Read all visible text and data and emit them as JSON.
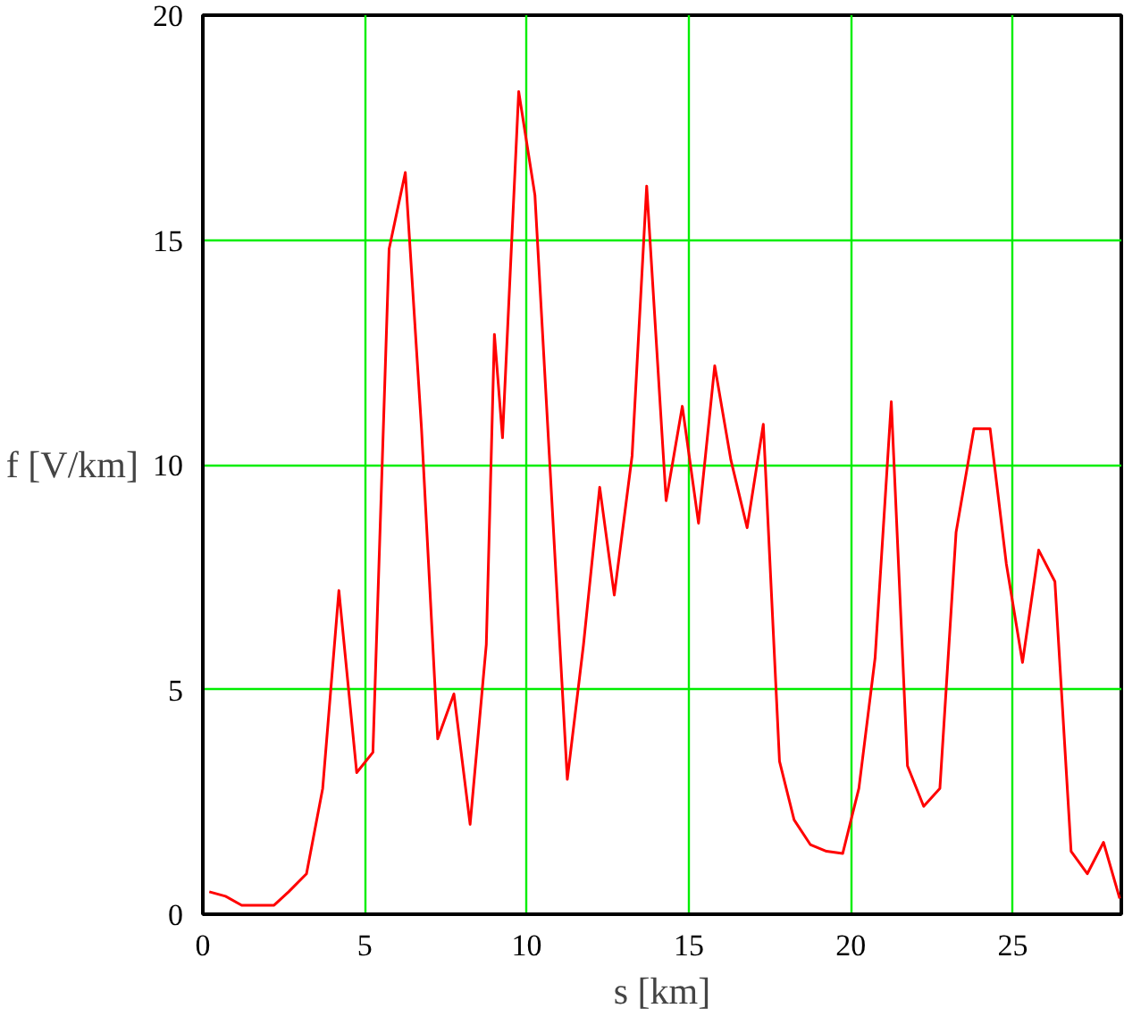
{
  "chart_data": {
    "type": "line",
    "xlabel": "s [km]",
    "ylabel": "f [V/km]",
    "x": [
      0.2,
      0.7,
      1.2,
      2.2,
      2.65,
      3.2,
      3.7,
      4.2,
      4.75,
      5.25,
      5.75,
      6.25,
      6.75,
      7.25,
      7.75,
      8.25,
      8.75,
      9.0,
      9.25,
      9.75,
      10.25,
      11.25,
      11.75,
      12.25,
      12.7,
      13.25,
      13.7,
      14.3,
      14.8,
      15.3,
      15.8,
      16.3,
      16.8,
      17.3,
      17.8,
      18.25,
      18.75,
      19.25,
      19.75,
      20.25,
      20.75,
      21.25,
      21.75,
      22.25,
      22.75,
      23.25,
      23.8,
      24.3,
      24.8,
      25.3,
      25.8,
      26.3,
      26.8,
      27.3,
      27.8,
      28.3
    ],
    "series": [
      {
        "color": "#ff0000",
        "values": [
          0.5,
          0.4,
          0.2,
          0.2,
          0.5,
          0.9,
          2.8,
          7.2,
          3.15,
          3.6,
          14.8,
          16.5,
          10.8,
          3.9,
          4.9,
          2.0,
          6.0,
          12.9,
          10.6,
          18.3,
          16.0,
          3.0,
          6.0,
          9.5,
          7.1,
          10.2,
          16.2,
          9.2,
          11.3,
          8.7,
          12.2,
          10.1,
          8.6,
          10.9,
          3.4,
          2.1,
          1.55,
          1.4,
          1.35,
          2.8,
          5.7,
          11.4,
          3.3,
          2.4,
          2.8,
          8.5,
          10.8,
          10.8,
          7.8,
          5.6,
          8.1,
          7.4,
          1.4,
          0.9,
          1.6,
          0.35
        ]
      }
    ],
    "xlim": [
      0,
      28.35
    ],
    "ylim": [
      0,
      20
    ],
    "xticks": [
      0,
      5,
      10,
      15,
      20,
      25
    ],
    "yticks": [
      0,
      5,
      10,
      15,
      20
    ],
    "grid": true,
    "line_style": "solid",
    "marker": "none"
  }
}
